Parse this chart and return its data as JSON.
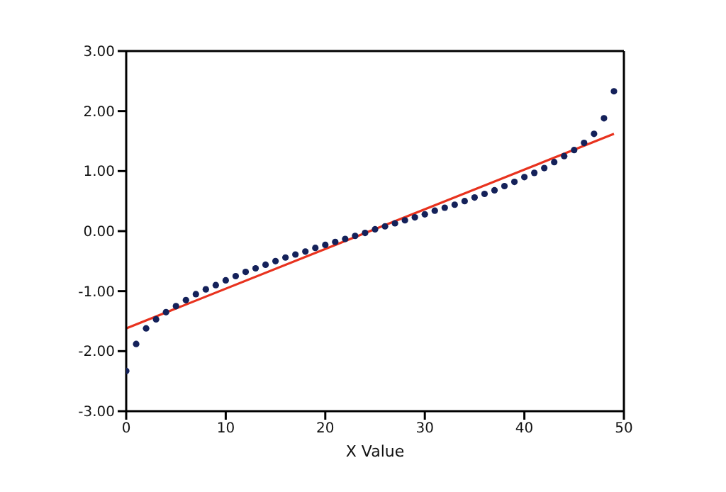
{
  "chart_data": {
    "type": "scatter",
    "xlabel": "X Value",
    "xlim": [
      0,
      50
    ],
    "xticks": [
      0,
      10,
      20,
      30,
      40,
      50
    ],
    "ylim": [
      -3,
      3
    ],
    "yticks": [
      {
        "value": -3,
        "label": "-3.00"
      },
      {
        "value": -2,
        "label": "-2.00"
      },
      {
        "value": -1,
        "label": "-1.00"
      },
      {
        "value": 0,
        "label": "0.00"
      },
      {
        "value": 1,
        "label": "1.00"
      },
      {
        "value": 2,
        "label": "2.00"
      },
      {
        "value": 3,
        "label": "3.00"
      }
    ],
    "marker": "circle",
    "series": [
      {
        "color": "#14215a",
        "x": [
          0,
          1,
          2,
          3,
          4,
          5,
          6,
          7,
          8,
          9,
          10,
          11,
          12,
          13,
          14,
          15,
          16,
          17,
          18,
          19,
          20,
          21,
          22,
          23,
          24,
          25,
          26,
          27,
          28,
          29,
          30,
          31,
          32,
          33,
          34,
          35,
          36,
          37,
          38,
          39,
          40,
          41,
          42,
          43,
          44,
          45,
          46,
          47,
          48,
          49
        ],
        "values": [
          -2.33,
          -1.88,
          -1.62,
          -1.47,
          -1.35,
          -1.25,
          -1.15,
          -1.05,
          -0.97,
          -0.9,
          -0.82,
          -0.75,
          -0.68,
          -0.62,
          -0.56,
          -0.5,
          -0.44,
          -0.39,
          -0.34,
          -0.28,
          -0.23,
          -0.18,
          -0.13,
          -0.08,
          -0.03,
          0.03,
          0.08,
          0.13,
          0.18,
          0.23,
          0.28,
          0.34,
          0.39,
          0.44,
          0.5,
          0.56,
          0.62,
          0.68,
          0.75,
          0.82,
          0.9,
          0.97,
          1.05,
          1.15,
          1.25,
          1.35,
          1.47,
          1.62,
          1.88,
          2.33
        ]
      },
      {
        "type": "line",
        "color": "#e8321e",
        "marker": "none",
        "x": [
          0,
          49
        ],
        "values": [
          -1.62,
          1.62
        ]
      }
    ]
  }
}
